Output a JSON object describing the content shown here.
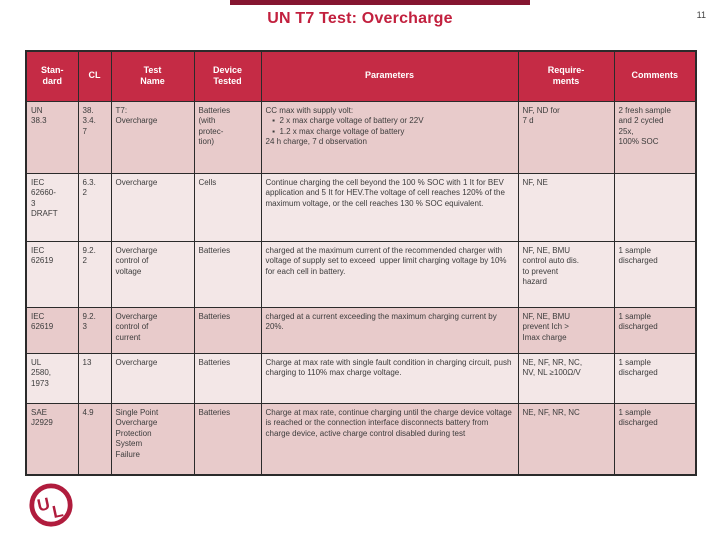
{
  "slide": {
    "title": "UN T7 Test: Overcharge",
    "page_number": "11",
    "title_color": "#c2203e",
    "header_bg_color": "#c52b45",
    "row_pink_color": "#e8cbcb",
    "row_light_color": "#f3e7e7",
    "top_bar_color": "#851530",
    "border_color": "#2b2b2b"
  },
  "logo": {
    "letters": "UL",
    "color": "#b01c3d",
    "icon": "ul-certification-mark"
  },
  "table": {
    "columns": [
      {
        "field": "standard",
        "label": "Stan-\ndard"
      },
      {
        "field": "cl",
        "label": "CL"
      },
      {
        "field": "test_name",
        "label": "Test\nName"
      },
      {
        "field": "device_tested",
        "label": "Device\nTested"
      },
      {
        "field": "parameters",
        "label": "Parameters"
      },
      {
        "field": "requirements",
        "label": "Require-\nments"
      },
      {
        "field": "comments",
        "label": "Comments"
      }
    ],
    "rows": [
      {
        "standard": "UN\n38.3",
        "cl": "38.\n3.4.\n7",
        "test_name": "T7:\nOvercharge",
        "device_tested": "Batteries\n(with\nprotec-\ntion)",
        "parameters": "CC max with supply volt:\n   ▪  2 x max charge voltage of battery or 22V\n   ▪  1.2 x max charge voltage of battery\n24 h charge, 7 d observation",
        "requirements": "NF, ND for\n7 d",
        "comments": "2 fresh sample\nand 2 cycled\n25x,\n100% SOC"
      },
      {
        "standard": "IEC\n62660-\n3\nDRAFT",
        "cl": "6.3.\n2",
        "test_name": "Overcharge",
        "device_tested": "Cells",
        "parameters": "Continue charging the cell beyond the 100 % SOC with 1 It for BEV application and 5 It for HEV.The voltage of cell reaches 120% of the maximum voltage, or the cell reaches 130 % SOC equivalent.",
        "requirements": "NF, NE",
        "comments": ""
      },
      {
        "standard": "IEC\n62619",
        "cl": "9.2.\n2",
        "test_name": "Overcharge\ncontrol of\nvoltage",
        "device_tested": "Batteries",
        "parameters": "charged at the maximum current of the recommended charger with  voltage of supply set to exceed  upper limit charging voltage by 10% for each cell in battery.",
        "requirements": "NF, NE, BMU\ncontrol auto dis.\nto prevent\nhazard",
        "comments": "1 sample\ndischarged"
      },
      {
        "standard": "IEC\n62619",
        "cl": "9.2.\n3",
        "test_name": "Overcharge\ncontrol of\ncurrent",
        "device_tested": "Batteries",
        "parameters": "charged at a current exceeding the maximum charging current by 20%.",
        "requirements": "NF, NE, BMU\nprevent Ich >\nImax charge",
        "comments": "1 sample\ndischarged"
      },
      {
        "standard": "UL\n2580,\n1973",
        "cl": "13",
        "test_name": "Overcharge",
        "device_tested": "Batteries",
        "parameters": "Charge at max rate with single fault condition in charging circuit, push charging to 110% max charge voltage.",
        "requirements": "NE, NF, NR, NC,\nNV, NL ≥100Ω/V",
        "comments": "1 sample\ndischarged"
      },
      {
        "standard": "SAE\nJ2929",
        "cl": "4.9",
        "test_name": "Single Point\nOvercharge\nProtection\nSystem\nFailure",
        "device_tested": "Batteries",
        "parameters": "Charge at max rate, continue charging until the charge device voltage is reached or the connection interface disconnects battery from charge device, active charge control disabled during test",
        "requirements": "NE, NF, NR, NC",
        "comments": "1 sample\ndischarged"
      }
    ]
  }
}
